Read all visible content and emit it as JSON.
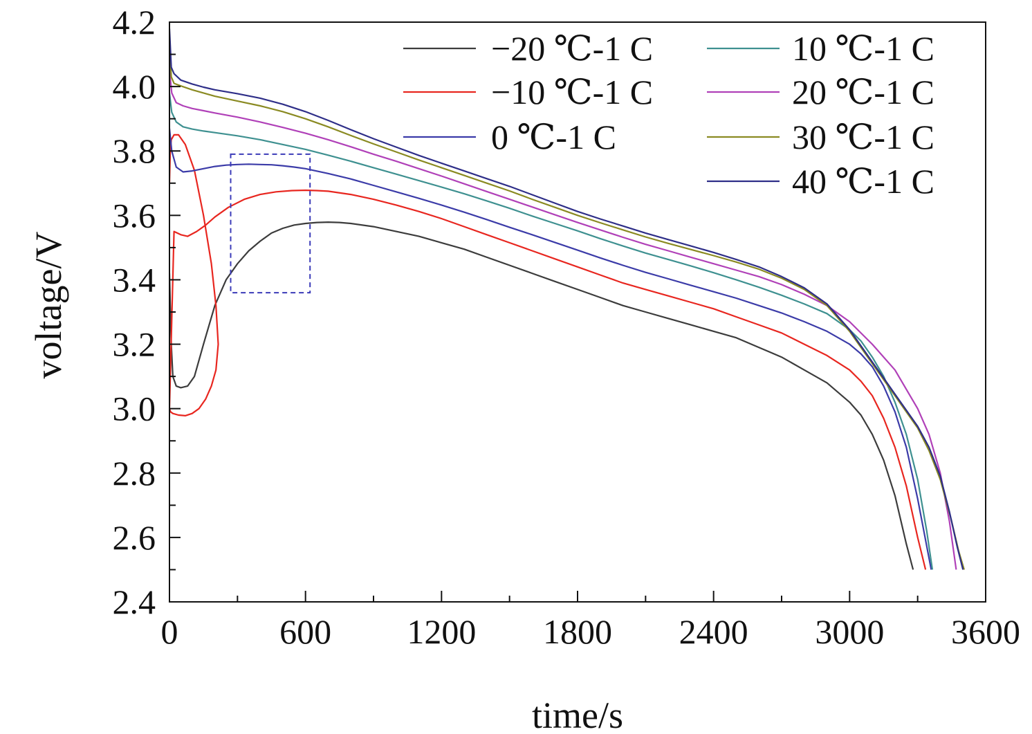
{
  "chart_data": {
    "type": "line",
    "title": "",
    "xlabel": "time/s",
    "ylabel": "voltage/V",
    "xlim": [
      0,
      3600
    ],
    "ylim": [
      2.4,
      4.2
    ],
    "x_ticks": [
      0,
      600,
      1200,
      1800,
      2400,
      3000,
      3600
    ],
    "x_tick_labels": [
      "0",
      "600",
      "1200",
      "1800",
      "2400",
      "3000",
      "3600"
    ],
    "y_ticks": [
      2.4,
      2.6,
      2.8,
      3.0,
      3.2,
      3.4,
      3.6,
      3.8,
      4.0,
      4.2
    ],
    "y_tick_labels": [
      "2.4",
      "2.6",
      "2.8",
      "3.0",
      "3.2",
      "3.4",
      "3.6",
      "3.8",
      "4.0",
      "4.2"
    ],
    "grid": false,
    "legend_position": "top-right",
    "highlight_box": {
      "x": [
        270,
        620
      ],
      "y": [
        3.36,
        3.79
      ],
      "style": "dashed",
      "color": "#3a3ab8"
    },
    "series": [
      {
        "name": "−20 ℃-1 C",
        "color": "#3c3c3c",
        "x": [
          0,
          8,
          15,
          30,
          50,
          80,
          110,
          150,
          200,
          250,
          300,
          350,
          400,
          450,
          500,
          550,
          600,
          650,
          700,
          750,
          800,
          900,
          1000,
          1100,
          1200,
          1300,
          1400,
          1500,
          1600,
          1700,
          1800,
          1900,
          2000,
          2100,
          2200,
          2300,
          2400,
          2500,
          2600,
          2700,
          2800,
          2900,
          3000,
          3050,
          3100,
          3150,
          3200,
          3250,
          3280
        ],
        "y": [
          3.42,
          3.2,
          3.1,
          3.07,
          3.065,
          3.07,
          3.1,
          3.2,
          3.32,
          3.4,
          3.45,
          3.49,
          3.52,
          3.545,
          3.56,
          3.57,
          3.575,
          3.578,
          3.579,
          3.578,
          3.575,
          3.565,
          3.55,
          3.535,
          3.515,
          3.495,
          3.47,
          3.445,
          3.42,
          3.395,
          3.37,
          3.345,
          3.32,
          3.3,
          3.28,
          3.26,
          3.24,
          3.22,
          3.19,
          3.16,
          3.12,
          3.08,
          3.02,
          2.98,
          2.92,
          2.84,
          2.73,
          2.58,
          2.5
        ]
      },
      {
        "name": "−10 ℃-1 C",
        "color": "#e8261f",
        "x": [
          0,
          3,
          8,
          20,
          40,
          70,
          110,
          150,
          185,
          205,
          215,
          205,
          185,
          160,
          130,
          100,
          70,
          40,
          15,
          5,
          0,
          20,
          50,
          80,
          120,
          160,
          200,
          260,
          330,
          400,
          470,
          540,
          600,
          650,
          700,
          800,
          900,
          1000,
          1100,
          1200,
          1300,
          1400,
          1500,
          1600,
          1700,
          1800,
          1900,
          2000,
          2100,
          2200,
          2300,
          2400,
          2500,
          2600,
          2700,
          2800,
          2900,
          3000,
          3050,
          3100,
          3150,
          3200,
          3250,
          3300,
          3335
        ],
        "y": [
          3.7,
          3.79,
          3.835,
          3.85,
          3.85,
          3.82,
          3.74,
          3.6,
          3.45,
          3.32,
          3.2,
          3.12,
          3.07,
          3.03,
          3.0,
          2.985,
          2.978,
          2.98,
          2.985,
          2.99,
          3.0,
          3.55,
          3.54,
          3.535,
          3.55,
          3.57,
          3.595,
          3.625,
          3.65,
          3.665,
          3.673,
          3.677,
          3.678,
          3.677,
          3.675,
          3.665,
          3.65,
          3.632,
          3.612,
          3.59,
          3.565,
          3.54,
          3.515,
          3.49,
          3.465,
          3.44,
          3.415,
          3.39,
          3.37,
          3.35,
          3.33,
          3.31,
          3.285,
          3.26,
          3.235,
          3.2,
          3.165,
          3.12,
          3.085,
          3.04,
          2.97,
          2.88,
          2.76,
          2.6,
          2.5
        ]
      },
      {
        "name": "0 ℃-1 C",
        "color": "#3b3ba8",
        "x": [
          0,
          10,
          30,
          60,
          100,
          150,
          200,
          250,
          300,
          350,
          400,
          450,
          500,
          550,
          600,
          700,
          800,
          900,
          1000,
          1100,
          1200,
          1300,
          1400,
          1500,
          1600,
          1700,
          1800,
          1900,
          2000,
          2100,
          2200,
          2300,
          2400,
          2500,
          2600,
          2700,
          2800,
          2900,
          3000,
          3050,
          3100,
          3150,
          3200,
          3250,
          3300,
          3360
        ],
        "y": [
          3.87,
          3.8,
          3.75,
          3.735,
          3.738,
          3.745,
          3.752,
          3.756,
          3.758,
          3.759,
          3.758,
          3.757,
          3.754,
          3.75,
          3.745,
          3.73,
          3.713,
          3.693,
          3.673,
          3.653,
          3.632,
          3.61,
          3.587,
          3.563,
          3.54,
          3.516,
          3.492,
          3.468,
          3.445,
          3.423,
          3.403,
          3.383,
          3.363,
          3.343,
          3.32,
          3.297,
          3.27,
          3.24,
          3.2,
          3.17,
          3.13,
          3.07,
          2.99,
          2.88,
          2.72,
          2.5
        ]
      },
      {
        "name": "10 ℃-1 C",
        "color": "#3e9090",
        "x": [
          0,
          10,
          30,
          60,
          100,
          150,
          200,
          300,
          400,
          500,
          600,
          700,
          800,
          900,
          1000,
          1100,
          1200,
          1300,
          1400,
          1500,
          1600,
          1700,
          1800,
          1900,
          2000,
          2100,
          2200,
          2300,
          2400,
          2500,
          2600,
          2700,
          2800,
          2900,
          3000,
          3050,
          3100,
          3150,
          3200,
          3250,
          3300,
          3340,
          3365
        ],
        "y": [
          3.98,
          3.92,
          3.89,
          3.875,
          3.868,
          3.862,
          3.857,
          3.847,
          3.835,
          3.82,
          3.805,
          3.787,
          3.768,
          3.748,
          3.728,
          3.708,
          3.688,
          3.667,
          3.645,
          3.622,
          3.598,
          3.575,
          3.552,
          3.528,
          3.505,
          3.483,
          3.463,
          3.443,
          3.422,
          3.4,
          3.377,
          3.352,
          3.325,
          3.295,
          3.245,
          3.21,
          3.16,
          3.1,
          3.02,
          2.92,
          2.78,
          2.62,
          2.5
        ]
      },
      {
        "name": "20 ℃-1 C",
        "color": "#b040b8",
        "x": [
          0,
          10,
          30,
          60,
          100,
          150,
          200,
          300,
          400,
          500,
          600,
          700,
          800,
          900,
          1000,
          1100,
          1200,
          1300,
          1400,
          1500,
          1600,
          1700,
          1800,
          1900,
          2000,
          2100,
          2200,
          2300,
          2400,
          2500,
          2600,
          2700,
          2800,
          2900,
          3000,
          3100,
          3200,
          3300,
          3350,
          3400,
          3440,
          3470
        ],
        "y": [
          4.05,
          3.98,
          3.95,
          3.94,
          3.932,
          3.925,
          3.918,
          3.905,
          3.89,
          3.873,
          3.855,
          3.835,
          3.813,
          3.79,
          3.768,
          3.745,
          3.722,
          3.698,
          3.674,
          3.65,
          3.626,
          3.602,
          3.578,
          3.555,
          3.532,
          3.51,
          3.49,
          3.47,
          3.45,
          3.43,
          3.41,
          3.385,
          3.355,
          3.32,
          3.27,
          3.2,
          3.12,
          3.0,
          2.92,
          2.8,
          2.65,
          2.5
        ]
      },
      {
        "name": "30 ℃-1 C",
        "color": "#8a8a22",
        "x": [
          0,
          8,
          20,
          50,
          100,
          150,
          200,
          300,
          400,
          500,
          600,
          700,
          800,
          900,
          1000,
          1100,
          1200,
          1300,
          1400,
          1500,
          1600,
          1700,
          1800,
          1900,
          2000,
          2100,
          2200,
          2300,
          2400,
          2500,
          2600,
          2700,
          2800,
          2900,
          3000,
          3100,
          3200,
          3300,
          3350,
          3400,
          3450,
          3480,
          3505
        ],
        "y": [
          4.15,
          4.03,
          4.01,
          4.002,
          3.99,
          3.98,
          3.97,
          3.955,
          3.94,
          3.922,
          3.9,
          3.875,
          3.848,
          3.822,
          3.797,
          3.772,
          3.748,
          3.724,
          3.7,
          3.676,
          3.65,
          3.625,
          3.6,
          3.577,
          3.555,
          3.533,
          3.513,
          3.494,
          3.475,
          3.455,
          3.433,
          3.405,
          3.37,
          3.32,
          3.24,
          3.14,
          3.04,
          2.94,
          2.87,
          2.78,
          2.65,
          2.56,
          2.5
        ]
      },
      {
        "name": "40 ℃-1 C",
        "color": "#2e2e88",
        "x": [
          0,
          8,
          20,
          50,
          100,
          150,
          200,
          300,
          400,
          500,
          600,
          700,
          800,
          900,
          1000,
          1100,
          1200,
          1300,
          1400,
          1500,
          1600,
          1700,
          1800,
          1900,
          2000,
          2100,
          2200,
          2300,
          2400,
          2500,
          2600,
          2700,
          2800,
          2900,
          3000,
          3100,
          3200,
          3300,
          3350,
          3400,
          3440,
          3475,
          3500
        ],
        "y": [
          4.18,
          4.06,
          4.04,
          4.02,
          4.008,
          3.998,
          3.99,
          3.978,
          3.964,
          3.945,
          3.922,
          3.895,
          3.866,
          3.838,
          3.812,
          3.786,
          3.762,
          3.738,
          3.714,
          3.69,
          3.664,
          3.638,
          3.612,
          3.589,
          3.567,
          3.545,
          3.525,
          3.505,
          3.485,
          3.463,
          3.44,
          3.41,
          3.375,
          3.325,
          3.245,
          3.145,
          3.045,
          2.945,
          2.88,
          2.79,
          2.68,
          2.57,
          2.5
        ]
      }
    ]
  }
}
